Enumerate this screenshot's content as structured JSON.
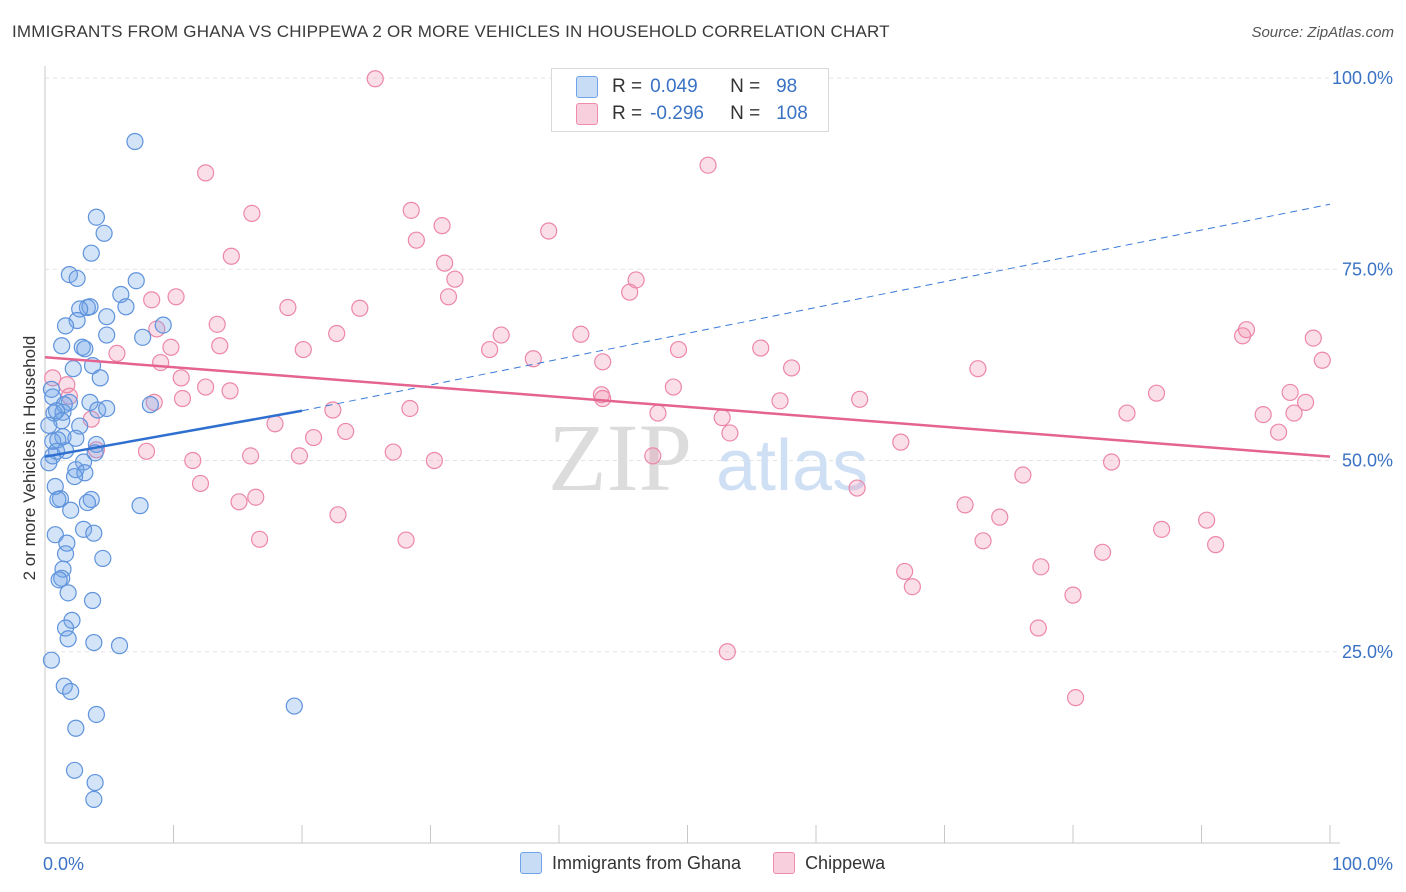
{
  "header": {
    "title": "IMMIGRANTS FROM GHANA VS CHIPPEWA 2 OR MORE VEHICLES IN HOUSEHOLD CORRELATION CHART",
    "source": "Source: ZipAtlas.com"
  },
  "watermark": {
    "zip": "ZIP",
    "atlas": "atlas"
  },
  "legend": {
    "r_label": "R =",
    "n_label": "N =",
    "rows": [
      {
        "r": "0.049",
        "n": "98",
        "color": "#6fa4e8"
      },
      {
        "r": "-0.296",
        "n": "108",
        "color": "#f08cab"
      }
    ]
  },
  "chart_data": {
    "type": "scatter",
    "title": "IMMIGRANTS FROM GHANA VS CHIPPEWA 2 OR MORE VEHICLES IN HOUSEHOLD CORRELATION CHART",
    "xlabel": "",
    "ylabel": "2 or more Vehicles in Household",
    "xlim": [
      0,
      100
    ],
    "ylim": [
      0,
      100
    ],
    "x_tick_labels": [
      "0.0%",
      "100.0%"
    ],
    "y_tick_labels": [
      "100.0%",
      "75.0%",
      "50.0%",
      "25.0%"
    ],
    "y_ticks": [
      100,
      75,
      50,
      25
    ],
    "grid": true,
    "legend_position": "top-center",
    "series": [
      {
        "name": "Immigrants from Ghana",
        "color": "#6fa4e8",
        "trend": {
          "x": [
            0,
            20
          ],
          "y": [
            50.5,
            56.5
          ],
          "dashed_to": [
            100,
            83.5
          ]
        },
        "points": [
          [
            7.0,
            91.7
          ],
          [
            4.0,
            81.8
          ],
          [
            4.6,
            79.7
          ],
          [
            3.6,
            77.1
          ],
          [
            1.9,
            74.3
          ],
          [
            7.1,
            73.5
          ],
          [
            2.5,
            73.8
          ],
          [
            5.9,
            71.7
          ],
          [
            6.3,
            70.1
          ],
          [
            3.3,
            70.0
          ],
          [
            3.5,
            70.1
          ],
          [
            2.7,
            69.8
          ],
          [
            4.8,
            68.8
          ],
          [
            2.5,
            68.3
          ],
          [
            1.6,
            67.6
          ],
          [
            9.2,
            67.7
          ],
          [
            4.8,
            66.4
          ],
          [
            7.6,
            66.1
          ],
          [
            1.3,
            65.0
          ],
          [
            2.9,
            64.8
          ],
          [
            3.1,
            64.6
          ],
          [
            2.2,
            62.0
          ],
          [
            3.7,
            62.4
          ],
          [
            4.3,
            60.8
          ],
          [
            1.9,
            57.6
          ],
          [
            0.6,
            58.3
          ],
          [
            1.5,
            57.3
          ],
          [
            0.7,
            56.2
          ],
          [
            1.4,
            56.3
          ],
          [
            0.9,
            56.5
          ],
          [
            3.5,
            57.6
          ],
          [
            4.1,
            56.6
          ],
          [
            4.8,
            56.8
          ],
          [
            8.2,
            57.3
          ],
          [
            0.5,
            59.3
          ],
          [
            1.3,
            55.2
          ],
          [
            0.3,
            54.6
          ],
          [
            2.7,
            54.5
          ],
          [
            1.4,
            53.1
          ],
          [
            0.6,
            52.5
          ],
          [
            1.0,
            52.7
          ],
          [
            2.4,
            52.9
          ],
          [
            1.6,
            51.3
          ],
          [
            4.0,
            52.1
          ],
          [
            0.9,
            51.2
          ],
          [
            0.6,
            50.6
          ],
          [
            3.9,
            51.0
          ],
          [
            0.3,
            49.7
          ],
          [
            3.0,
            49.8
          ],
          [
            2.4,
            48.8
          ],
          [
            3.1,
            48.4
          ],
          [
            2.3,
            47.9
          ],
          [
            0.8,
            46.6
          ],
          [
            1.2,
            45.0
          ],
          [
            1.0,
            44.9
          ],
          [
            3.6,
            44.9
          ],
          [
            3.3,
            44.5
          ],
          [
            2.0,
            43.5
          ],
          [
            7.4,
            44.1
          ],
          [
            3.0,
            41.0
          ],
          [
            3.8,
            40.5
          ],
          [
            0.8,
            40.3
          ],
          [
            1.7,
            39.2
          ],
          [
            1.6,
            37.8
          ],
          [
            4.5,
            37.2
          ],
          [
            1.4,
            35.8
          ],
          [
            1.3,
            34.6
          ],
          [
            1.1,
            34.4
          ],
          [
            1.8,
            32.7
          ],
          [
            3.7,
            31.7
          ],
          [
            2.1,
            29.1
          ],
          [
            1.6,
            28.1
          ],
          [
            1.8,
            26.7
          ],
          [
            3.8,
            26.2
          ],
          [
            5.8,
            25.8
          ],
          [
            0.5,
            23.9
          ],
          [
            1.5,
            20.5
          ],
          [
            2.0,
            19.8
          ],
          [
            19.4,
            17.9
          ],
          [
            4.0,
            16.8
          ],
          [
            2.4,
            15.0
          ],
          [
            2.3,
            9.5
          ],
          [
            3.9,
            7.9
          ],
          [
            3.8,
            5.7
          ]
        ]
      },
      {
        "name": "Chippewa",
        "color": "#f08cab",
        "trend": {
          "x": [
            0,
            100
          ],
          "y": [
            63.5,
            50.5
          ]
        },
        "points": [
          [
            25.7,
            99.9
          ],
          [
            51.6,
            88.6
          ],
          [
            12.5,
            87.6
          ],
          [
            16.1,
            82.3
          ],
          [
            28.5,
            82.7
          ],
          [
            30.9,
            80.7
          ],
          [
            39.2,
            80.0
          ],
          [
            28.9,
            78.8
          ],
          [
            14.5,
            76.7
          ],
          [
            31.1,
            75.8
          ],
          [
            31.9,
            73.7
          ],
          [
            46.0,
            73.6
          ],
          [
            45.5,
            72.0
          ],
          [
            10.2,
            71.4
          ],
          [
            8.3,
            71.0
          ],
          [
            31.4,
            71.4
          ],
          [
            18.9,
            70.0
          ],
          [
            24.5,
            69.9
          ],
          [
            13.4,
            67.8
          ],
          [
            8.7,
            67.2
          ],
          [
            22.7,
            66.6
          ],
          [
            41.7,
            66.5
          ],
          [
            35.5,
            66.4
          ],
          [
            93.5,
            67.1
          ],
          [
            93.2,
            66.3
          ],
          [
            98.7,
            66.0
          ],
          [
            13.6,
            65.0
          ],
          [
            9.8,
            64.8
          ],
          [
            20.1,
            64.5
          ],
          [
            34.6,
            64.5
          ],
          [
            49.3,
            64.5
          ],
          [
            55.7,
            64.7
          ],
          [
            5.6,
            64.0
          ],
          [
            38.0,
            63.3
          ],
          [
            43.4,
            62.9
          ],
          [
            99.4,
            63.1
          ],
          [
            9.0,
            62.8
          ],
          [
            58.1,
            62.1
          ],
          [
            72.6,
            62.0
          ],
          [
            0.6,
            60.8
          ],
          [
            10.6,
            60.8
          ],
          [
            1.7,
            59.9
          ],
          [
            12.5,
            59.6
          ],
          [
            14.4,
            59.1
          ],
          [
            48.9,
            59.6
          ],
          [
            43.3,
            58.6
          ],
          [
            86.5,
            58.8
          ],
          [
            96.9,
            58.9
          ],
          [
            1.9,
            58.4
          ],
          [
            10.7,
            58.1
          ],
          [
            43.4,
            58.1
          ],
          [
            57.2,
            57.8
          ],
          [
            63.4,
            58.0
          ],
          [
            8.5,
            57.6
          ],
          [
            98.1,
            57.6
          ],
          [
            28.4,
            56.8
          ],
          [
            22.4,
            56.6
          ],
          [
            47.7,
            56.2
          ],
          [
            52.7,
            55.6
          ],
          [
            84.2,
            56.2
          ],
          [
            94.8,
            56.0
          ],
          [
            97.2,
            56.2
          ],
          [
            3.6,
            55.4
          ],
          [
            17.9,
            54.8
          ],
          [
            23.4,
            53.8
          ],
          [
            20.9,
            53.0
          ],
          [
            53.3,
            53.6
          ],
          [
            96.0,
            53.7
          ],
          [
            66.6,
            52.4
          ],
          [
            4.0,
            51.4
          ],
          [
            7.9,
            51.2
          ],
          [
            16.0,
            50.6
          ],
          [
            19.8,
            50.6
          ],
          [
            27.1,
            51.1
          ],
          [
            47.3,
            50.6
          ],
          [
            11.5,
            50.0
          ],
          [
            30.3,
            50.0
          ],
          [
            83.0,
            49.8
          ],
          [
            76.1,
            48.1
          ],
          [
            12.1,
            47.0
          ],
          [
            63.2,
            46.4
          ],
          [
            16.4,
            45.2
          ],
          [
            15.1,
            44.6
          ],
          [
            71.6,
            44.2
          ],
          [
            22.8,
            42.9
          ],
          [
            74.3,
            42.6
          ],
          [
            90.4,
            42.2
          ],
          [
            86.9,
            41.0
          ],
          [
            16.7,
            39.7
          ],
          [
            28.1,
            39.6
          ],
          [
            73.0,
            39.5
          ],
          [
            91.1,
            39.0
          ],
          [
            82.3,
            38.0
          ],
          [
            77.5,
            36.1
          ],
          [
            66.9,
            35.5
          ],
          [
            67.5,
            33.5
          ],
          [
            80.0,
            32.4
          ],
          [
            77.3,
            28.1
          ],
          [
            53.1,
            25.0
          ],
          [
            80.2,
            19.0
          ]
        ]
      }
    ]
  },
  "bottom_legend": [
    {
      "label": "Immigrants from Ghana",
      "color": "#6fa4e8"
    },
    {
      "label": "Chippewa",
      "color": "#f08cab"
    }
  ]
}
